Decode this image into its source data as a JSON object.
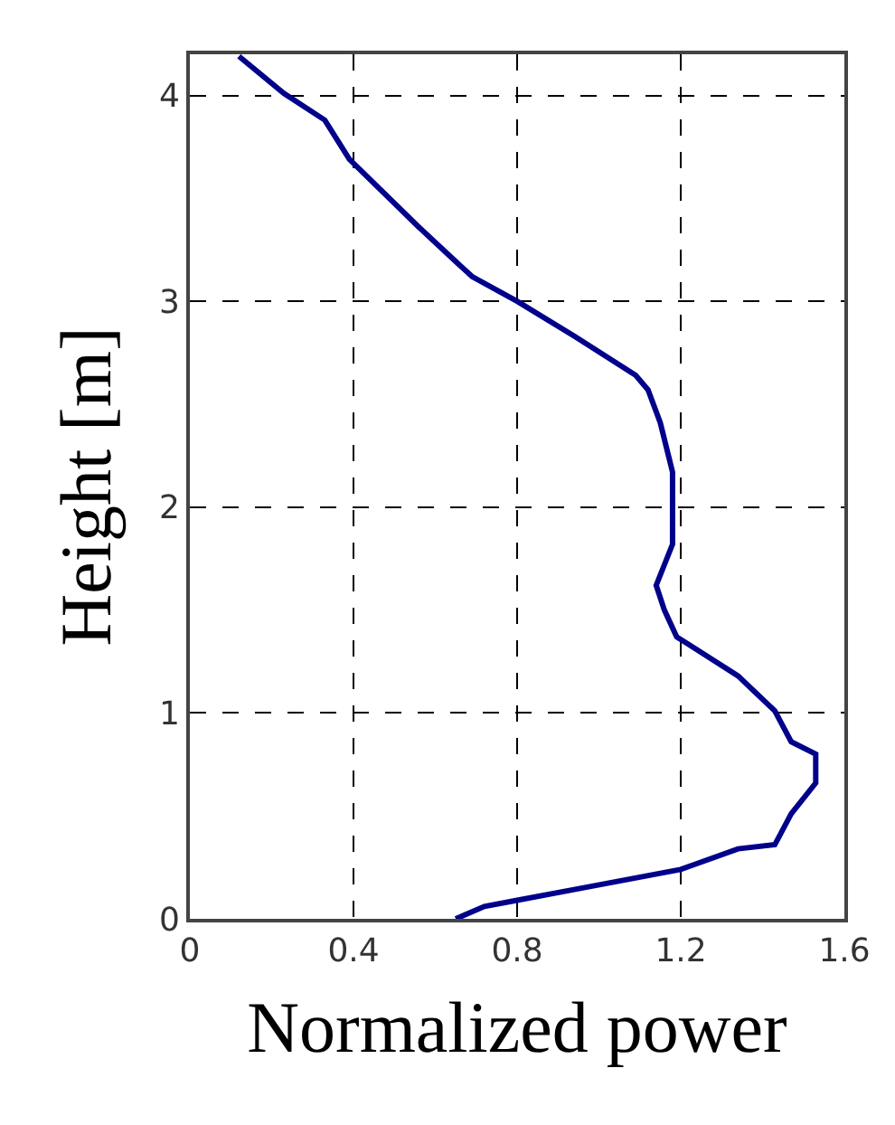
{
  "chart_data": {
    "type": "line",
    "xlabel": "Normalized power",
    "ylabel": "Height [m]",
    "series": [
      {
        "color": "#00008b",
        "x": [
          0.65,
          0.72,
          0.8,
          0.96,
          1.2,
          1.34,
          1.43,
          1.47,
          1.53,
          1.53,
          1.47,
          1.43,
          1.34,
          1.19,
          1.16,
          1.14,
          1.18,
          1.18,
          1.18,
          1.15,
          1.12,
          1.09,
          0.94,
          0.8,
          0.69,
          0.63,
          0.56,
          0.39,
          0.33,
          0.23,
          0.12
        ],
        "values": [
          0.0,
          0.06,
          0.09,
          0.15,
          0.24,
          0.34,
          0.36,
          0.51,
          0.66,
          0.8,
          0.86,
          1.01,
          1.18,
          1.37,
          1.5,
          1.62,
          1.82,
          2.09,
          2.17,
          2.41,
          2.57,
          2.64,
          2.83,
          3.0,
          3.12,
          3.23,
          3.36,
          3.69,
          3.88,
          4.01,
          4.19
        ]
      }
    ],
    "xlim": [
      0,
      1.6
    ],
    "xticks": [
      0,
      {
        "value": 0.4,
        "label": "0.4"
      },
      {
        "value": 0.8,
        "label": "0.8"
      },
      {
        "value": 1.2,
        "label": "1.2"
      },
      {
        "value": 1.6,
        "label": "1.6"
      }
    ],
    "ylim": [
      0,
      4.2
    ],
    "yticks": [
      0,
      1,
      2,
      3,
      4
    ],
    "grid": true,
    "marker": "none",
    "line_style": "solid"
  }
}
